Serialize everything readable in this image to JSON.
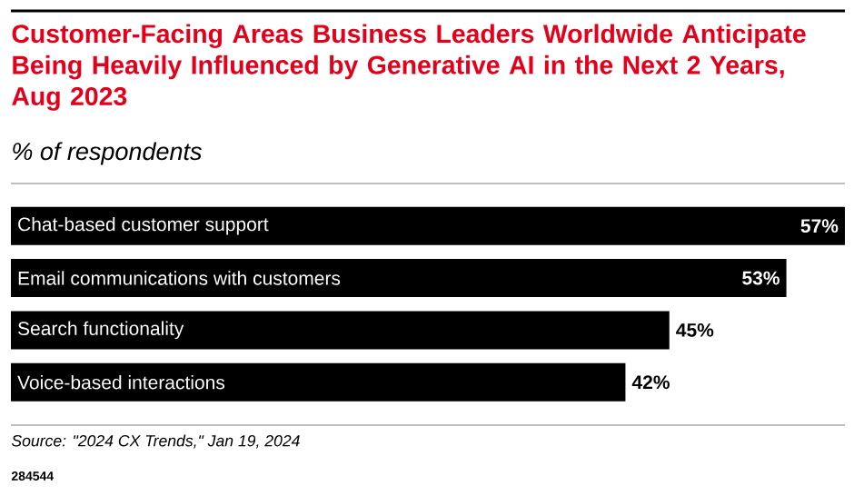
{
  "chart_data": {
    "type": "bar",
    "orientation": "horizontal",
    "title": "Customer-Facing Areas Business Leaders Worldwide Anticipate Being Heavily Influenced by Generative AI in the Next 2 Years, Aug 2023",
    "subtitle": "% of respondents",
    "categories": [
      "Chat-based customer support",
      "Email communications with customers",
      "Search functionality",
      "Voice-based interactions"
    ],
    "values": [
      57,
      53,
      45,
      42
    ],
    "value_labels": [
      "57%",
      "53%",
      "45%",
      "42%"
    ],
    "color": "#000000",
    "annotations": [
      "Source: \"2024 CX Trends,\" Jan 19, 2024",
      "284544"
    ]
  }
}
